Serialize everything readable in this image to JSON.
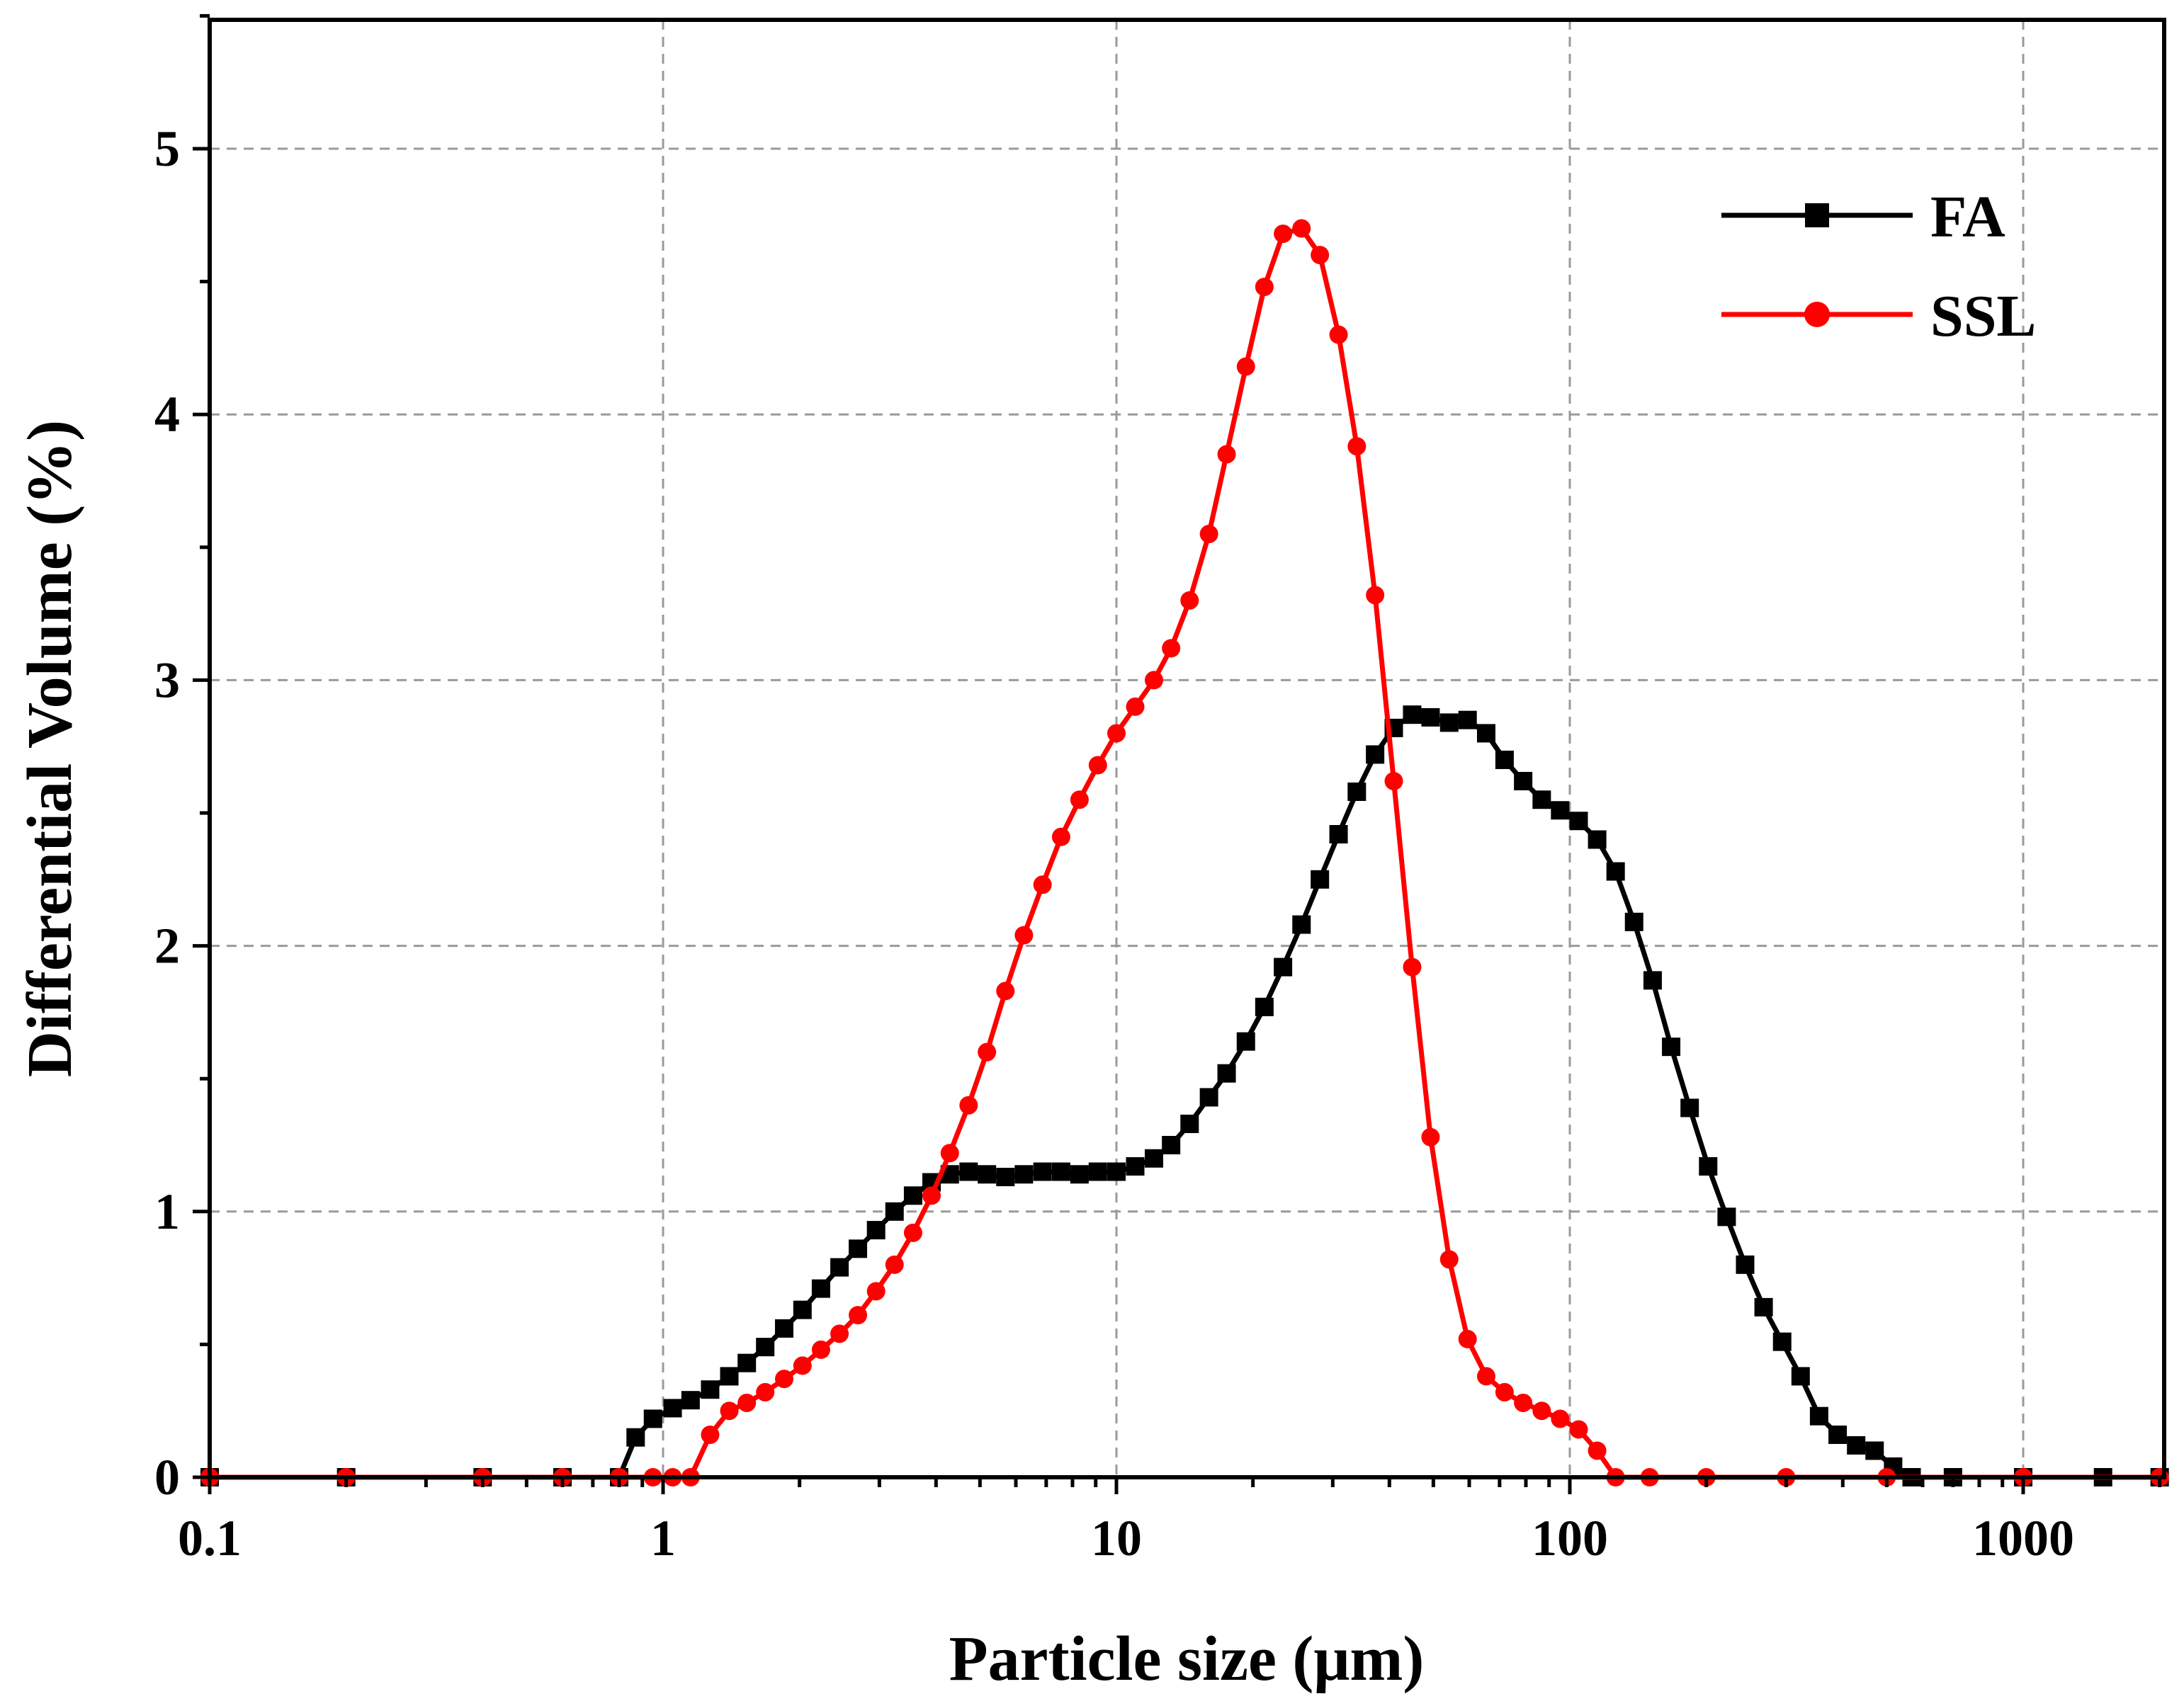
{
  "chart_data": {
    "type": "line",
    "title": "",
    "xlabel": "Particle size (μm)",
    "ylabel": "Differential Volume (%)",
    "xscale": "log",
    "xlim": [
      0.1,
      2000
    ],
    "ylim": [
      0,
      5.5
    ],
    "grid": true,
    "legend_position": "top-right",
    "x_ticks": [
      0.1,
      1,
      10,
      100,
      1000
    ],
    "x_tick_labels": [
      "0.1",
      "1",
      "10",
      "100",
      "1000"
    ],
    "y_ticks": [
      0,
      1,
      2,
      3,
      4,
      5
    ],
    "y_tick_labels": [
      "0",
      "1",
      "2",
      "3",
      "4",
      "5"
    ],
    "series": [
      {
        "name": "FA",
        "color": "#000000",
        "marker": "square",
        "points": [
          [
            0.1,
            0
          ],
          [
            0.2,
            0
          ],
          [
            0.4,
            0
          ],
          [
            0.6,
            0
          ],
          [
            0.8,
            0
          ],
          [
            0.87,
            0.15
          ],
          [
            0.95,
            0.22
          ],
          [
            1.05,
            0.26
          ],
          [
            1.15,
            0.29
          ],
          [
            1.27,
            0.33
          ],
          [
            1.4,
            0.38
          ],
          [
            1.53,
            0.43
          ],
          [
            1.68,
            0.49
          ],
          [
            1.85,
            0.56
          ],
          [
            2.03,
            0.63
          ],
          [
            2.23,
            0.71
          ],
          [
            2.45,
            0.79
          ],
          [
            2.69,
            0.86
          ],
          [
            2.95,
            0.93
          ],
          [
            3.24,
            1.0
          ],
          [
            3.56,
            1.06
          ],
          [
            3.91,
            1.11
          ],
          [
            4.29,
            1.14
          ],
          [
            4.72,
            1.15
          ],
          [
            5.18,
            1.14
          ],
          [
            5.69,
            1.13
          ],
          [
            6.25,
            1.14
          ],
          [
            6.87,
            1.15
          ],
          [
            7.55,
            1.15
          ],
          [
            8.29,
            1.14
          ],
          [
            9.1,
            1.15
          ],
          [
            10.0,
            1.15
          ],
          [
            11.0,
            1.17
          ],
          [
            12.1,
            1.2
          ],
          [
            13.2,
            1.25
          ],
          [
            14.5,
            1.33
          ],
          [
            16.0,
            1.43
          ],
          [
            17.5,
            1.52
          ],
          [
            19.3,
            1.64
          ],
          [
            21.2,
            1.77
          ],
          [
            23.3,
            1.92
          ],
          [
            25.6,
            2.08
          ],
          [
            28.1,
            2.25
          ],
          [
            30.9,
            2.42
          ],
          [
            33.9,
            2.58
          ],
          [
            37.2,
            2.72
          ],
          [
            40.9,
            2.82
          ],
          [
            44.9,
            2.87
          ],
          [
            49.3,
            2.86
          ],
          [
            54.2,
            2.84
          ],
          [
            59.5,
            2.85
          ],
          [
            65.4,
            2.8
          ],
          [
            71.8,
            2.7
          ],
          [
            78.9,
            2.62
          ],
          [
            86.7,
            2.55
          ],
          [
            95.2,
            2.51
          ],
          [
            104.6,
            2.47
          ],
          [
            114.9,
            2.4
          ],
          [
            126.2,
            2.28
          ],
          [
            138.6,
            2.09
          ],
          [
            152.3,
            1.87
          ],
          [
            167.3,
            1.62
          ],
          [
            183.8,
            1.39
          ],
          [
            201.9,
            1.17
          ],
          [
            221.8,
            0.98
          ],
          [
            243.6,
            0.8
          ],
          [
            267.6,
            0.64
          ],
          [
            294.0,
            0.51
          ],
          [
            322.9,
            0.38
          ],
          [
            354.7,
            0.23
          ],
          [
            389.7,
            0.16
          ],
          [
            428.1,
            0.12
          ],
          [
            470.2,
            0.1
          ],
          [
            516.5,
            0.04
          ],
          [
            567.4,
            0
          ],
          [
            700,
            0
          ],
          [
            1000,
            0
          ],
          [
            1500,
            0
          ],
          [
            2000,
            0
          ]
        ]
      },
      {
        "name": "SSL",
        "color": "#ff0000",
        "marker": "circle",
        "points": [
          [
            0.1,
            0
          ],
          [
            0.2,
            0
          ],
          [
            0.4,
            0
          ],
          [
            0.6,
            0
          ],
          [
            0.8,
            0
          ],
          [
            0.95,
            0
          ],
          [
            1.05,
            0
          ],
          [
            1.15,
            0
          ],
          [
            1.27,
            0.16
          ],
          [
            1.4,
            0.25
          ],
          [
            1.53,
            0.28
          ],
          [
            1.68,
            0.32
          ],
          [
            1.85,
            0.37
          ],
          [
            2.03,
            0.42
          ],
          [
            2.23,
            0.48
          ],
          [
            2.45,
            0.54
          ],
          [
            2.69,
            0.61
          ],
          [
            2.95,
            0.7
          ],
          [
            3.24,
            0.8
          ],
          [
            3.56,
            0.92
          ],
          [
            3.91,
            1.06
          ],
          [
            4.29,
            1.22
          ],
          [
            4.72,
            1.4
          ],
          [
            5.18,
            1.6
          ],
          [
            5.69,
            1.83
          ],
          [
            6.25,
            2.04
          ],
          [
            6.87,
            2.23
          ],
          [
            7.55,
            2.41
          ],
          [
            8.29,
            2.55
          ],
          [
            9.1,
            2.68
          ],
          [
            10.0,
            2.8
          ],
          [
            11.0,
            2.9
          ],
          [
            12.1,
            3.0
          ],
          [
            13.2,
            3.12
          ],
          [
            14.5,
            3.3
          ],
          [
            16.0,
            3.55
          ],
          [
            17.5,
            3.85
          ],
          [
            19.3,
            4.18
          ],
          [
            21.2,
            4.48
          ],
          [
            23.3,
            4.68
          ],
          [
            25.6,
            4.7
          ],
          [
            28.1,
            4.6
          ],
          [
            30.9,
            4.3
          ],
          [
            33.9,
            3.88
          ],
          [
            37.2,
            3.32
          ],
          [
            40.9,
            2.62
          ],
          [
            44.9,
            1.92
          ],
          [
            49.3,
            1.28
          ],
          [
            54.2,
            0.82
          ],
          [
            59.5,
            0.52
          ],
          [
            65.4,
            0.38
          ],
          [
            71.8,
            0.32
          ],
          [
            78.9,
            0.28
          ],
          [
            86.7,
            0.25
          ],
          [
            95.2,
            0.22
          ],
          [
            104.6,
            0.18
          ],
          [
            114.9,
            0.1
          ],
          [
            126.2,
            0
          ],
          [
            150,
            0
          ],
          [
            200,
            0
          ],
          [
            300,
            0
          ],
          [
            500,
            0
          ],
          [
            1000,
            0
          ],
          [
            2000,
            0
          ]
        ]
      }
    ]
  }
}
